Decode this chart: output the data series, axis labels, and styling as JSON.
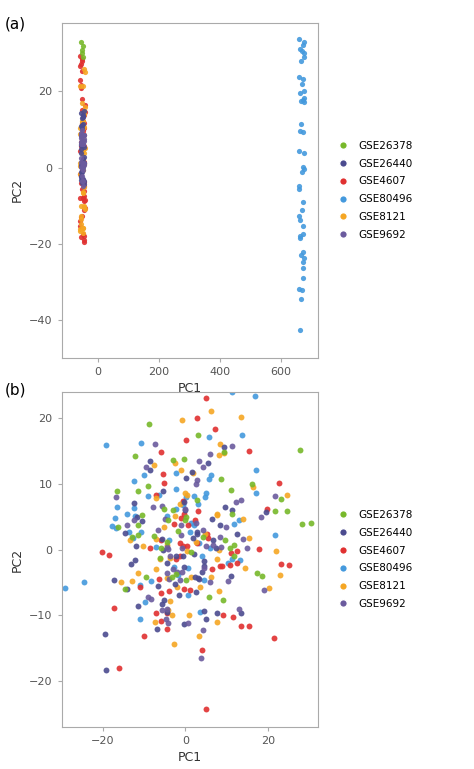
{
  "colors": {
    "GSE26378": "#77b82a",
    "GSE26440": "#4b4b8f",
    "GSE4607": "#e03030",
    "GSE80496": "#4499dd",
    "GSE8121": "#f5a623",
    "GSE9692": "#6b5b9e"
  },
  "legend_labels": [
    "GSE26378",
    "GSE26440",
    "GSE4607",
    "GSE80496",
    "GSE8121",
    "GSE9692"
  ],
  "panel_a": {
    "xlabel": "PC1",
    "ylabel": "PC2",
    "xlim": [
      -120,
      720
    ],
    "ylim": [
      -50,
      38
    ],
    "xticks": [
      0,
      200,
      400,
      600
    ],
    "yticks": [
      -40,
      -20,
      0,
      20
    ]
  },
  "panel_b": {
    "xlabel": "PC1",
    "ylabel": "PC2",
    "xlim": [
      -30,
      32
    ],
    "ylim": [
      -27,
      24
    ],
    "xticks": [
      -20,
      0,
      20
    ],
    "yticks": [
      -20,
      -10,
      0,
      10,
      20
    ]
  },
  "figure_background": "#ffffff",
  "axes_background": "#ffffff",
  "border_color": "#aaaaaa",
  "tick_color": "#555555",
  "marker_size_a": 14,
  "marker_size_b": 18,
  "alpha": 0.9,
  "seed": 42
}
